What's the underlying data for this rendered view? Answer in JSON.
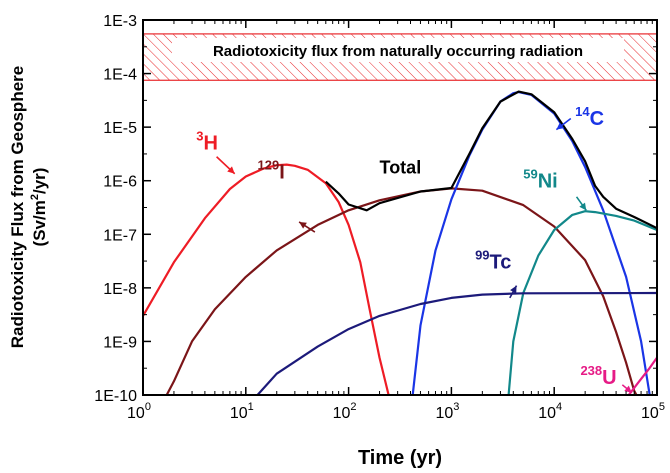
{
  "chart_data": {
    "type": "line",
    "xlabel": "Time (yr)",
    "ylabel_line1": "Radiotoxicity Flux from Geosphere",
    "ylabel_line2_prefix": "(Sv/m",
    "ylabel_line2_sup": "2",
    "ylabel_line2_suffix": "/yr)",
    "xscale": "log",
    "yscale": "log",
    "xlim": [
      1,
      100000
    ],
    "ylim": [
      1e-10,
      0.001
    ],
    "x_tick_base": "10",
    "x_ticks": [
      {
        "value": 1,
        "exp": "0"
      },
      {
        "value": 10,
        "exp": "1"
      },
      {
        "value": 100,
        "exp": "2"
      },
      {
        "value": 1000,
        "exp": "3"
      },
      {
        "value": 10000,
        "exp": "4"
      },
      {
        "value": 100000,
        "exp": "5"
      }
    ],
    "y_ticks": [
      {
        "value": 1e-10,
        "label": "1E-10"
      },
      {
        "value": 1e-09,
        "label": "1E-9"
      },
      {
        "value": 1e-08,
        "label": "1E-8"
      },
      {
        "value": 1e-07,
        "label": "1E-7"
      },
      {
        "value": 1e-06,
        "label": "1E-6"
      },
      {
        "value": 1e-05,
        "label": "1E-5"
      },
      {
        "value": 0.0001,
        "label": "1E-4"
      },
      {
        "value": 0.001,
        "label": "1E-3"
      }
    ],
    "band": {
      "text": "Radiotoxicity flux from naturally occurring radiation",
      "y_range": [
        7.5e-05,
        0.00055
      ],
      "color": "#e8282c"
    },
    "series": [
      {
        "id": "h3",
        "color": "#ee1c25",
        "sup": "3",
        "sym": "H",
        "label_pos": {
          "x": 3.3,
          "y": 3.8e-06
        },
        "arrow": {
          "from": {
            "x": 5.2,
            "y": 2.8e-06
          },
          "to": {
            "x": 7.8,
            "y": 1.35e-06
          }
        },
        "points": [
          [
            1,
            3e-09
          ],
          [
            2,
            3e-08
          ],
          [
            4,
            2e-07
          ],
          [
            7,
            7e-07
          ],
          [
            10,
            1.2e-06
          ],
          [
            15,
            1.7e-06
          ],
          [
            20,
            1.95e-06
          ],
          [
            25,
            2e-06
          ],
          [
            30,
            1.9e-06
          ],
          [
            40,
            1.6e-06
          ],
          [
            60,
            9e-07
          ],
          [
            80,
            4e-07
          ],
          [
            100,
            1.5e-07
          ],
          [
            130,
            3e-08
          ],
          [
            160,
            4e-09
          ],
          [
            200,
            5e-10
          ],
          [
            245,
            1e-10
          ]
        ]
      },
      {
        "id": "i129",
        "color": "#7b1518",
        "sup": "129",
        "sym": "I",
        "label_pos": {
          "x": 13,
          "y": 1.1e-06
        },
        "arrow": {
          "from": {
            "x": 47,
            "y": 1.1e-07
          },
          "to": {
            "x": 33,
            "y": 1.7e-07
          }
        },
        "points": [
          [
            1.7,
            1e-10
          ],
          [
            2,
            1.8e-10
          ],
          [
            3,
            1e-09
          ],
          [
            5,
            4e-09
          ],
          [
            10,
            1.6e-08
          ],
          [
            20,
            5e-08
          ],
          [
            50,
            1.5e-07
          ],
          [
            100,
            2.8e-07
          ],
          [
            200,
            4.3e-07
          ],
          [
            500,
            6.3e-07
          ],
          [
            1000,
            7.2e-07
          ],
          [
            2000,
            6.5e-07
          ],
          [
            5000,
            3.5e-07
          ],
          [
            10000,
            1.4e-07
          ],
          [
            20000,
            3.3e-08
          ],
          [
            30000,
            7e-09
          ],
          [
            40000,
            1.5e-09
          ],
          [
            50000,
            4e-10
          ],
          [
            60000,
            1.2e-10
          ],
          [
            63000,
            1e-10
          ]
        ]
      },
      {
        "id": "c14",
        "color": "#1a35e6",
        "sup": "14",
        "sym": "C",
        "label_pos": {
          "x": 16000,
          "y": 1.1e-05
        },
        "arrow": {
          "from": {
            "x": 14500,
            "y": 1.45e-05
          },
          "to": {
            "x": 10500,
            "y": 9e-06
          }
        },
        "points": [
          [
            420,
            1e-10
          ],
          [
            500,
            2e-09
          ],
          [
            700,
            5e-08
          ],
          [
            1000,
            4.5e-07
          ],
          [
            1500,
            3e-06
          ],
          [
            2000,
            9e-06
          ],
          [
            3000,
            3e-05
          ],
          [
            4000,
            4.3e-05
          ],
          [
            4500,
            4.5e-05
          ],
          [
            6000,
            4e-05
          ],
          [
            10000,
            1.8e-05
          ],
          [
            15000,
            5.5e-06
          ],
          [
            20000,
            1.8e-06
          ],
          [
            30000,
            2.8e-07
          ],
          [
            50000,
            1.6e-08
          ],
          [
            70000,
            1e-09
          ],
          [
            85000,
            1e-10
          ]
        ]
      },
      {
        "id": "ni59",
        "color": "#12888a",
        "sup": "59",
        "sym": "Ni",
        "label_pos": {
          "x": 5000,
          "y": 7.5e-07
        },
        "arrow": {
          "from": {
            "x": 16500,
            "y": 5e-07
          },
          "to": {
            "x": 20500,
            "y": 2.8e-07
          }
        },
        "points": [
          [
            3600,
            1e-10
          ],
          [
            4000,
            1e-09
          ],
          [
            5000,
            8e-09
          ],
          [
            7000,
            4e-08
          ],
          [
            10000,
            1.2e-07
          ],
          [
            15000,
            2.3e-07
          ],
          [
            20000,
            2.7e-07
          ],
          [
            25000,
            2.6e-07
          ],
          [
            40000,
            2.2e-07
          ],
          [
            60000,
            1.8e-07
          ],
          [
            100000,
            1.2e-07
          ]
        ]
      },
      {
        "id": "tc99",
        "color": "#1c1a7a",
        "sup": "99",
        "sym": "Tc",
        "label_pos": {
          "x": 1700,
          "y": 2.3e-08
        },
        "arrow": {
          "from": {
            "x": 3700,
            "y": 6.5e-09
          },
          "to": {
            "x": 4300,
            "y": 1.1e-08
          }
        },
        "points": [
          [
            13,
            1e-10
          ],
          [
            20,
            2.5e-10
          ],
          [
            50,
            8e-10
          ],
          [
            100,
            1.7e-09
          ],
          [
            200,
            3e-09
          ],
          [
            500,
            5e-09
          ],
          [
            1000,
            6.5e-09
          ],
          [
            2000,
            7.5e-09
          ],
          [
            5000,
            7.9e-09
          ],
          [
            100000,
            8e-09
          ]
        ]
      },
      {
        "id": "u238",
        "color": "#e61b86",
        "sup": "238",
        "sym": "U",
        "label_pos": {
          "x": 18000,
          "y": 1.6e-10
        },
        "arrow": {
          "from": {
            "x": 46000,
            "y": 1.55e-10
          },
          "to": {
            "x": 57000,
            "y": 1.1e-10
          }
        },
        "points": [
          [
            53000,
            1e-10
          ],
          [
            70000,
            2e-10
          ],
          [
            85000,
            3.2e-10
          ],
          [
            100000,
            5e-10
          ]
        ]
      },
      {
        "id": "total",
        "color": "#000000",
        "name": "Total",
        "label_pos": {
          "x": 200,
          "y": 1.35e-06
        },
        "points": [
          [
            60,
            9.6e-07
          ],
          [
            80,
            5.8e-07
          ],
          [
            100,
            3.6e-07
          ],
          [
            150,
            2.8e-07
          ],
          [
            200,
            3.8e-07
          ],
          [
            500,
            6.3e-07
          ],
          [
            1000,
            7.3e-07
          ],
          [
            1500,
            3.2e-06
          ],
          [
            2000,
            9.5e-06
          ],
          [
            3000,
            3e-05
          ],
          [
            4500,
            4.6e-05
          ],
          [
            6000,
            4.1e-05
          ],
          [
            10000,
            1.9e-05
          ],
          [
            15000,
            6e-06
          ],
          [
            20000,
            2.3e-06
          ],
          [
            25000,
            8e-07
          ],
          [
            30000,
            5e-07
          ],
          [
            40000,
            3e-07
          ],
          [
            60000,
            2.1e-07
          ],
          [
            100000,
            1.3e-07
          ]
        ]
      }
    ]
  }
}
